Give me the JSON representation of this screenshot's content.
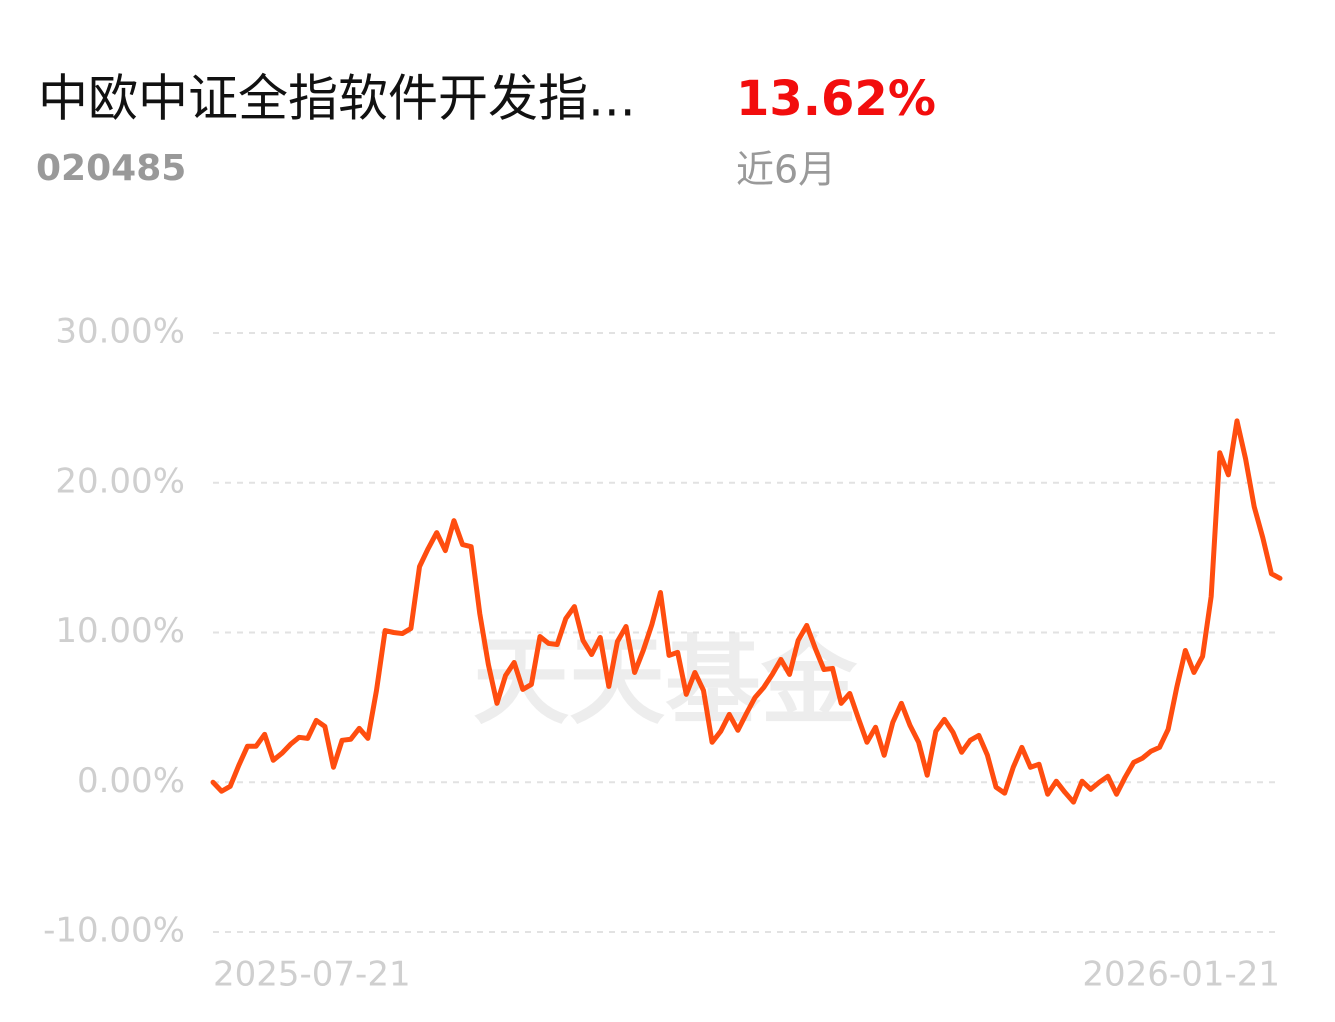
{
  "header": {
    "code": "020485",
    "return": "13.62%",
    "period": "近6月"
  },
  "watermark": "天天基金",
  "chart_data": {
    "type": "line",
    "title": "中欧中证全指软件开发指...",
    "categories": [
      "2025-07-21",
      null,
      null,
      null,
      null,
      null,
      null,
      null,
      null,
      null,
      null,
      null,
      null,
      null,
      null,
      null,
      null,
      null,
      null,
      null,
      null,
      null,
      null,
      null,
      null,
      null,
      null,
      null,
      null,
      null,
      null,
      null,
      null,
      null,
      null,
      null,
      null,
      null,
      null,
      null,
      null,
      null,
      null,
      null,
      null,
      null,
      null,
      null,
      null,
      null,
      null,
      null,
      null,
      null,
      null,
      null,
      null,
      null,
      null,
      null,
      null,
      null,
      null,
      null,
      null,
      null,
      null,
      null,
      null,
      null,
      null,
      null,
      null,
      null,
      null,
      null,
      null,
      null,
      null,
      null,
      null,
      null,
      null,
      null,
      null,
      null,
      null,
      null,
      null,
      null,
      null,
      null,
      null,
      null,
      null,
      null,
      null,
      null,
      null,
      null,
      null,
      null,
      null,
      null,
      null,
      null,
      null,
      null,
      null,
      null,
      null,
      null,
      null,
      null,
      null,
      null,
      null,
      null,
      null,
      null,
      null,
      null,
      null,
      null,
      "2026-01-21"
    ],
    "values": [
      0,
      -0.6,
      -0.27,
      1.13,
      2.4,
      2.4,
      3.2,
      1.47,
      1.93,
      2.53,
      3.0,
      2.93,
      4.13,
      3.73,
      1.0,
      2.8,
      2.87,
      3.6,
      2.93,
      6.13,
      10.13,
      10.0,
      9.93,
      10.27,
      14.4,
      15.6,
      16.67,
      15.47,
      17.47,
      15.87,
      15.73,
      11.27,
      7.87,
      5.27,
      7.13,
      8.0,
      6.2,
      6.53,
      9.73,
      9.27,
      9.2,
      10.93,
      11.73,
      9.47,
      8.53,
      9.67,
      6.4,
      9.4,
      10.4,
      7.33,
      8.8,
      10.53,
      12.67,
      8.47,
      8.67,
      5.87,
      7.33,
      6.13,
      2.67,
      3.4,
      4.53,
      3.47,
      4.6,
      5.67,
      6.33,
      7.2,
      8.2,
      7.2,
      9.47,
      10.47,
      8.93,
      7.53,
      7.6,
      5.27,
      5.93,
      4.27,
      2.67,
      3.67,
      1.8,
      4.0,
      5.27,
      3.8,
      2.67,
      0.47,
      3.4,
      4.2,
      3.33,
      2.0,
      2.8,
      3.13,
      1.8,
      -0.33,
      -0.73,
      1.0,
      2.33,
      1.0,
      1.2,
      -0.8,
      0.07,
      -0.67,
      -1.33,
      0.07,
      -0.47,
      0,
      0.4,
      -0.8,
      0.33,
      1.33,
      1.6,
      2.07,
      2.33,
      3.53,
      6.33,
      8.8,
      7.33,
      8.4,
      12.4,
      22.0,
      20.53,
      24.13,
      21.6,
      18.4,
      16.33,
      13.93,
      13.62
    ],
    "color": "#ff4d0f",
    "ylim": [
      -10,
      30
    ],
    "yticks": [
      {
        "value": -10,
        "label": "-10.00%"
      },
      {
        "value": 0,
        "label": "0.00%"
      },
      {
        "value": 10,
        "label": "10.00%"
      },
      {
        "value": 20,
        "label": "20.00%"
      },
      {
        "value": 30,
        "label": "30.00%"
      }
    ],
    "grid": true
  }
}
